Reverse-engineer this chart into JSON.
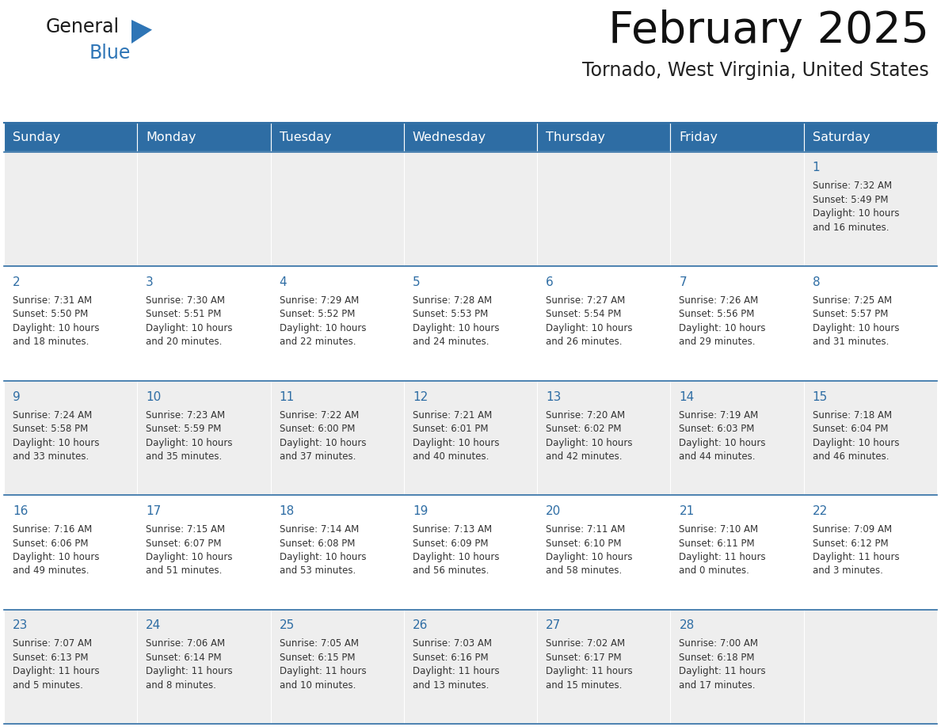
{
  "title": "February 2025",
  "subtitle": "Tornado, West Virginia, United States",
  "header_bg": "#2E6DA4",
  "header_text_color": "#FFFFFF",
  "row_bg": [
    "#EEEEEE",
    "#FFFFFF",
    "#EEEEEE",
    "#FFFFFF",
    "#EEEEEE"
  ],
  "day_number_color": "#2E6DA4",
  "cell_text_color": "#333333",
  "days_of_week": [
    "Sunday",
    "Monday",
    "Tuesday",
    "Wednesday",
    "Thursday",
    "Friday",
    "Saturday"
  ],
  "logo_general_color": "#1A1A1A",
  "logo_blue_color": "#2E75B6",
  "separator_color": "#2E6DA4",
  "fig_width": 11.88,
  "fig_height": 9.18,
  "calendar_data": [
    [
      null,
      null,
      null,
      null,
      null,
      null,
      {
        "day": 1,
        "sunrise": "7:32 AM",
        "sunset": "5:49 PM",
        "daylight": "10 hours\nand 16 minutes."
      }
    ],
    [
      {
        "day": 2,
        "sunrise": "7:31 AM",
        "sunset": "5:50 PM",
        "daylight": "10 hours\nand 18 minutes."
      },
      {
        "day": 3,
        "sunrise": "7:30 AM",
        "sunset": "5:51 PM",
        "daylight": "10 hours\nand 20 minutes."
      },
      {
        "day": 4,
        "sunrise": "7:29 AM",
        "sunset": "5:52 PM",
        "daylight": "10 hours\nand 22 minutes."
      },
      {
        "day": 5,
        "sunrise": "7:28 AM",
        "sunset": "5:53 PM",
        "daylight": "10 hours\nand 24 minutes."
      },
      {
        "day": 6,
        "sunrise": "7:27 AM",
        "sunset": "5:54 PM",
        "daylight": "10 hours\nand 26 minutes."
      },
      {
        "day": 7,
        "sunrise": "7:26 AM",
        "sunset": "5:56 PM",
        "daylight": "10 hours\nand 29 minutes."
      },
      {
        "day": 8,
        "sunrise": "7:25 AM",
        "sunset": "5:57 PM",
        "daylight": "10 hours\nand 31 minutes."
      }
    ],
    [
      {
        "day": 9,
        "sunrise": "7:24 AM",
        "sunset": "5:58 PM",
        "daylight": "10 hours\nand 33 minutes."
      },
      {
        "day": 10,
        "sunrise": "7:23 AM",
        "sunset": "5:59 PM",
        "daylight": "10 hours\nand 35 minutes."
      },
      {
        "day": 11,
        "sunrise": "7:22 AM",
        "sunset": "6:00 PM",
        "daylight": "10 hours\nand 37 minutes."
      },
      {
        "day": 12,
        "sunrise": "7:21 AM",
        "sunset": "6:01 PM",
        "daylight": "10 hours\nand 40 minutes."
      },
      {
        "day": 13,
        "sunrise": "7:20 AM",
        "sunset": "6:02 PM",
        "daylight": "10 hours\nand 42 minutes."
      },
      {
        "day": 14,
        "sunrise": "7:19 AM",
        "sunset": "6:03 PM",
        "daylight": "10 hours\nand 44 minutes."
      },
      {
        "day": 15,
        "sunrise": "7:18 AM",
        "sunset": "6:04 PM",
        "daylight": "10 hours\nand 46 minutes."
      }
    ],
    [
      {
        "day": 16,
        "sunrise": "7:16 AM",
        "sunset": "6:06 PM",
        "daylight": "10 hours\nand 49 minutes."
      },
      {
        "day": 17,
        "sunrise": "7:15 AM",
        "sunset": "6:07 PM",
        "daylight": "10 hours\nand 51 minutes."
      },
      {
        "day": 18,
        "sunrise": "7:14 AM",
        "sunset": "6:08 PM",
        "daylight": "10 hours\nand 53 minutes."
      },
      {
        "day": 19,
        "sunrise": "7:13 AM",
        "sunset": "6:09 PM",
        "daylight": "10 hours\nand 56 minutes."
      },
      {
        "day": 20,
        "sunrise": "7:11 AM",
        "sunset": "6:10 PM",
        "daylight": "10 hours\nand 58 minutes."
      },
      {
        "day": 21,
        "sunrise": "7:10 AM",
        "sunset": "6:11 PM",
        "daylight": "11 hours\nand 0 minutes."
      },
      {
        "day": 22,
        "sunrise": "7:09 AM",
        "sunset": "6:12 PM",
        "daylight": "11 hours\nand 3 minutes."
      }
    ],
    [
      {
        "day": 23,
        "sunrise": "7:07 AM",
        "sunset": "6:13 PM",
        "daylight": "11 hours\nand 5 minutes."
      },
      {
        "day": 24,
        "sunrise": "7:06 AM",
        "sunset": "6:14 PM",
        "daylight": "11 hours\nand 8 minutes."
      },
      {
        "day": 25,
        "sunrise": "7:05 AM",
        "sunset": "6:15 PM",
        "daylight": "11 hours\nand 10 minutes."
      },
      {
        "day": 26,
        "sunrise": "7:03 AM",
        "sunset": "6:16 PM",
        "daylight": "11 hours\nand 13 minutes."
      },
      {
        "day": 27,
        "sunrise": "7:02 AM",
        "sunset": "6:17 PM",
        "daylight": "11 hours\nand 15 minutes."
      },
      {
        "day": 28,
        "sunrise": "7:00 AM",
        "sunset": "6:18 PM",
        "daylight": "11 hours\nand 17 minutes."
      },
      null
    ]
  ]
}
